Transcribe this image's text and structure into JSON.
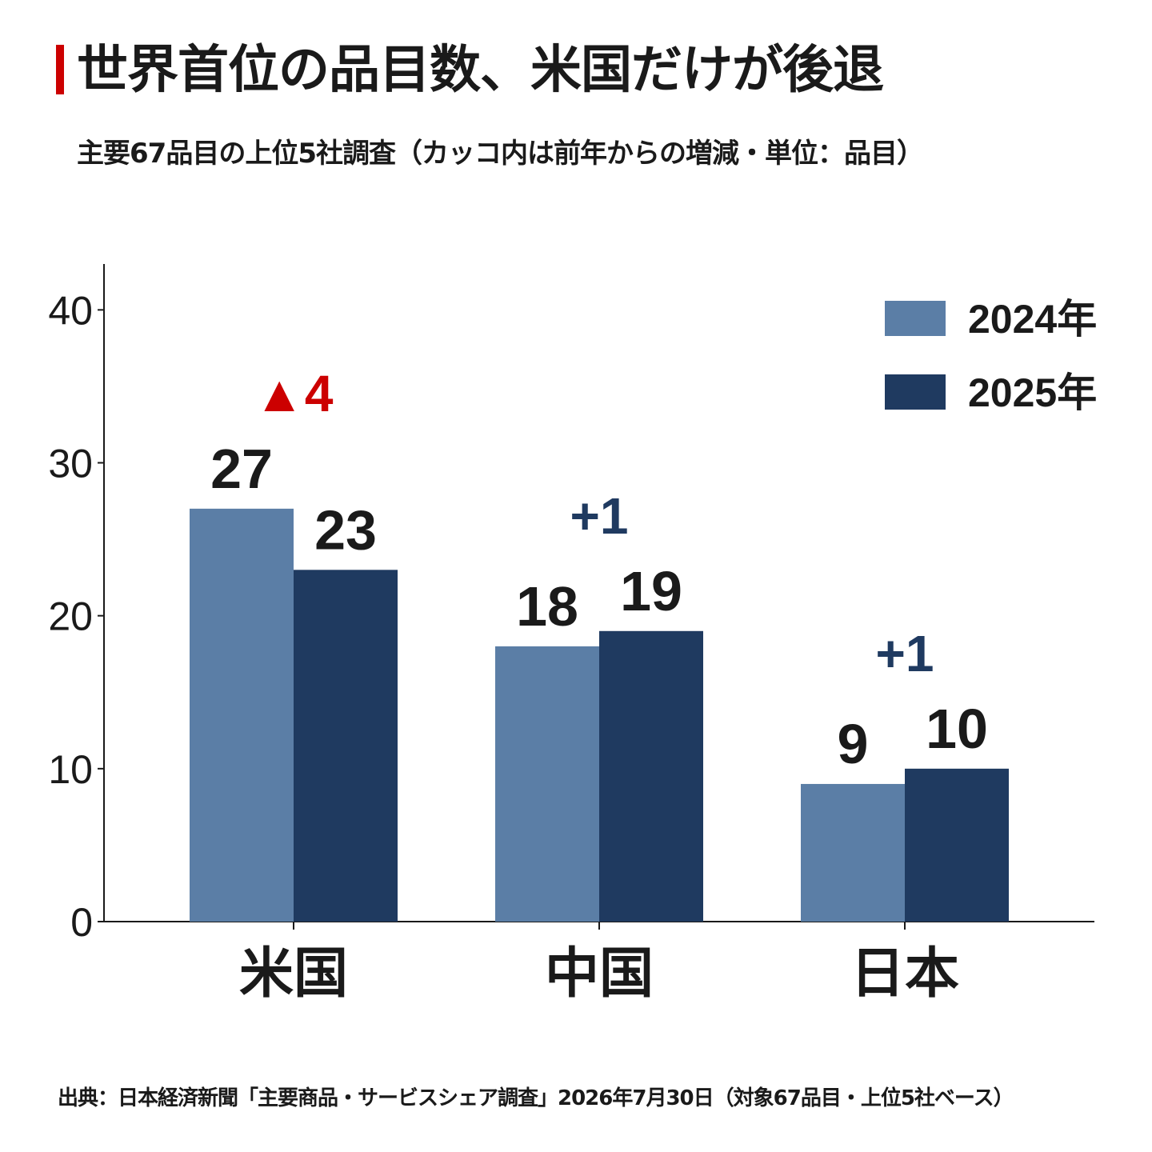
{
  "title": "世界首位の品目数、米国だけが後退",
  "subtitle": "主要67品目の上位5社調査（カッコ内は前年からの増減・単位：品目）",
  "source": "出典：日本経済新聞「主要商品・サービスシェア調査」2026年7月30日（対象67品目・上位5社ベース）",
  "colors": {
    "accent": "#cc0000",
    "series_2024": "#5b7ea6",
    "series_2025": "#1f3a60",
    "increase": "#1f3a60",
    "decrease": "#cc0000"
  },
  "chart_data": {
    "type": "bar",
    "categories": [
      "米国",
      "中国",
      "日本"
    ],
    "series": [
      {
        "name": "2024年",
        "values": [
          27,
          18,
          9
        ]
      },
      {
        "name": "2025年",
        "values": [
          23,
          19,
          10
        ]
      }
    ],
    "changes": [
      "▲4",
      "+1",
      "+1"
    ],
    "change_direction": [
      "down",
      "up",
      "up"
    ],
    "yticks": [
      0,
      10,
      20,
      30,
      40
    ],
    "ylim": [
      0,
      43
    ],
    "xlabel": "",
    "ylabel": "",
    "legend_position": "top-right",
    "grid": false
  }
}
